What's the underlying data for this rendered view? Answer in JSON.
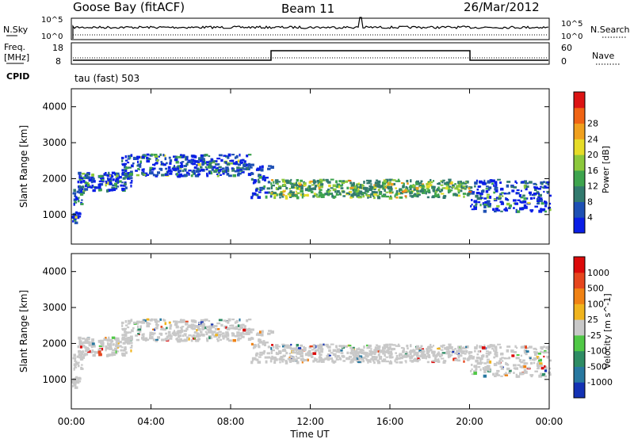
{
  "header": {
    "station": "Goose Bay (fitACF)",
    "beam": "Beam 11",
    "date": "26/Mar/2012"
  },
  "noise_panel": {
    "left_label": "N.Sky",
    "right_label": "N.Search",
    "tick_hi": "10^5",
    "tick_lo": "10^0"
  },
  "freq_panel": {
    "left_label_1": "Freq.",
    "left_label_2": "[MHz]",
    "right_label": "Nave",
    "left_ticks": [
      "18",
      "8"
    ],
    "right_ticks": [
      "60",
      "0"
    ]
  },
  "cpid_panel": {
    "label": "CPID",
    "text": "tau (fast) 503"
  },
  "chart_data": [
    {
      "type": "heatmap",
      "name": "power",
      "ylabel": "Slant Range [km]",
      "yticks": [
        1000,
        2000,
        3000,
        4000
      ],
      "ylim": [
        180,
        4500
      ],
      "xlim": [
        0,
        24
      ],
      "colorbar": {
        "label": "Power [dB]",
        "ticks": [
          "4",
          "8",
          "12",
          "16",
          "20",
          "24",
          "28"
        ],
        "colors": [
          "#0a1ee6",
          "#1e50b4",
          "#327a6e",
          "#3ea44e",
          "#8cc83c",
          "#e6dc28",
          "#f0a01e",
          "#f06414",
          "#dc1414"
        ]
      }
    },
    {
      "type": "heatmap",
      "name": "velocity",
      "ylabel": "Slant Range [km]",
      "yticks": [
        1000,
        2000,
        3000,
        4000
      ],
      "ylim": [
        180,
        4500
      ],
      "xlim": [
        0,
        24
      ],
      "xticks": [
        "00:00",
        "04:00",
        "08:00",
        "12:00",
        "16:00",
        "20:00",
        "00:00"
      ],
      "xlabel": "Time UT",
      "colorbar": {
        "label": "Velocity [m s^-1]",
        "ticks": [
          "1000",
          "500",
          "100",
          "25",
          "-25",
          "-100",
          "-500",
          "-1000"
        ],
        "colors": [
          "#1432b4",
          "#2878a0",
          "#2e8c64",
          "#50c846",
          "#c8c8c8",
          "#f0b41e",
          "#f08214",
          "#e6461e",
          "#dc0a0a"
        ]
      }
    }
  ],
  "colors": {
    "ground_scatter": "#c8c8c8",
    "axis": "#000000"
  }
}
